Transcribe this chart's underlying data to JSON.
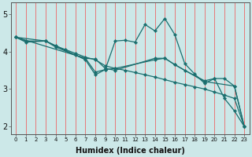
{
  "xlabel": "Humidex (Indice chaleur)",
  "background_color": "#cce8e8",
  "grid_color": "#e87878",
  "line_color": "#1a6e6e",
  "xlim": [
    -0.5,
    23.5
  ],
  "ylim": [
    1.8,
    5.3
  ],
  "yticks": [
    2,
    3,
    4,
    5
  ],
  "xticks": [
    0,
    1,
    2,
    3,
    4,
    5,
    6,
    7,
    8,
    9,
    10,
    11,
    12,
    13,
    14,
    15,
    16,
    17,
    18,
    19,
    20,
    21,
    22,
    23
  ],
  "series": [
    {
      "x": [
        0,
        1,
        3,
        4,
        5,
        6,
        7,
        8,
        9,
        10,
        11,
        12,
        13,
        14,
        15,
        16,
        17,
        18,
        19,
        20,
        21,
        22,
        23
      ],
      "y": [
        4.38,
        4.28,
        4.28,
        4.15,
        4.05,
        3.95,
        3.85,
        3.78,
        3.62,
        3.55,
        3.5,
        3.44,
        3.38,
        3.32,
        3.25,
        3.18,
        3.12,
        3.06,
        3.0,
        2.92,
        2.84,
        2.75,
        2.0
      ]
    },
    {
      "x": [
        0,
        3,
        7,
        8,
        9,
        10,
        11,
        12,
        13,
        14,
        15,
        16,
        17,
        18,
        19,
        20,
        21,
        22,
        23
      ],
      "y": [
        4.38,
        4.28,
        3.78,
        3.38,
        3.52,
        4.28,
        4.3,
        4.25,
        4.72,
        4.55,
        4.88,
        4.45,
        3.68,
        3.4,
        3.15,
        3.28,
        2.75,
        2.42,
        2.0
      ]
    },
    {
      "x": [
        0,
        1,
        3,
        4,
        6,
        7,
        8,
        9,
        10,
        14,
        15,
        16,
        17,
        19,
        20,
        21,
        22,
        23
      ],
      "y": [
        4.38,
        4.25,
        4.28,
        4.12,
        3.9,
        3.82,
        3.8,
        3.55,
        3.5,
        3.82,
        3.82,
        3.65,
        3.5,
        3.22,
        3.28,
        3.28,
        3.08,
        2.0
      ]
    },
    {
      "x": [
        0,
        7,
        8,
        9,
        10,
        14,
        15,
        16,
        19,
        22,
        23
      ],
      "y": [
        4.38,
        3.82,
        3.45,
        3.52,
        3.55,
        3.78,
        3.82,
        3.65,
        3.2,
        3.08,
        2.0
      ]
    }
  ]
}
